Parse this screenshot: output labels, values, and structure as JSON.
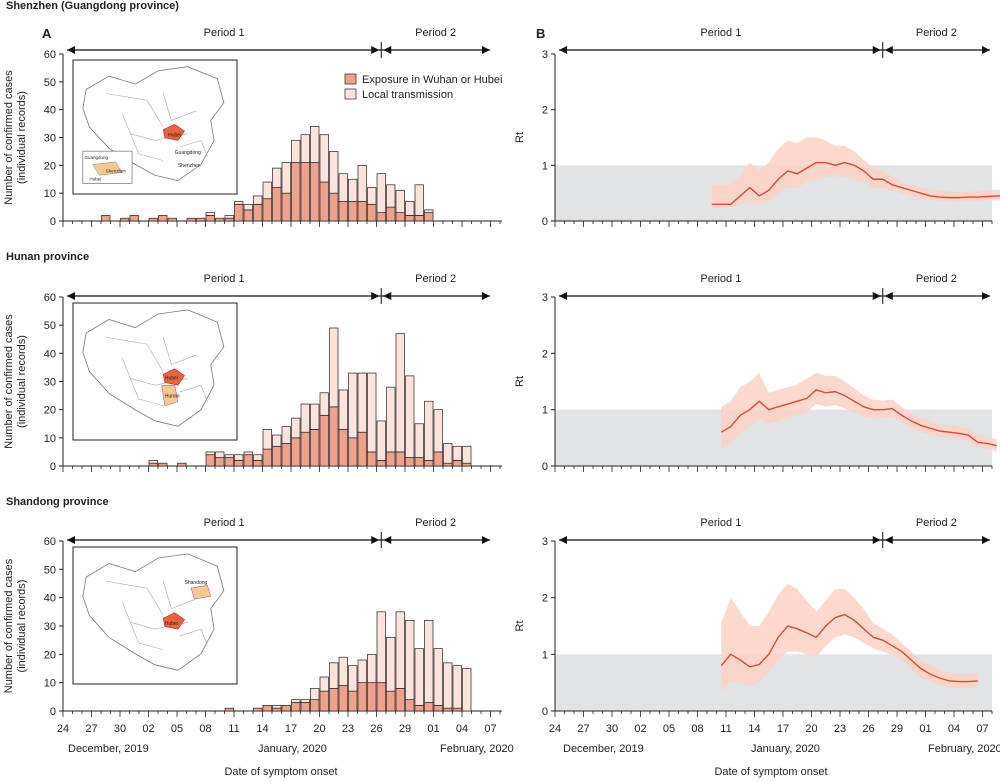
{
  "colors": {
    "exposure": "#f0a18b",
    "local": "#fde3db",
    "bar_stroke": "#222222",
    "rt_line": "#d9493a",
    "rt_band": "#fcd2c3",
    "shade": "#e1e3e4",
    "map_fill": "#ffffff",
    "map_hubei": "#e8643c",
    "map_target": "#f4c98f"
  },
  "panel_labels": {
    "a": "A",
    "b": "B"
  },
  "axis": {
    "ylabel_cases_1": "Number of confirmed cases",
    "ylabel_cases_2": "(individual records)",
    "ylabel_rt": "Rt",
    "xlabel": "Date of symptom onset",
    "date_ticks": [
      "24",
      "27",
      "30",
      "02",
      "05",
      "08",
      "11",
      "14",
      "17",
      "20",
      "23",
      "26",
      "29",
      "01",
      "04",
      "07"
    ],
    "months": [
      "December, 2019",
      "January, 2020",
      "February, 2020"
    ],
    "cases_ticks": [
      "0",
      "10",
      "20",
      "30",
      "40",
      "50",
      "60"
    ],
    "rt_ticks": [
      "0",
      "1",
      "2",
      "3"
    ]
  },
  "period_labels": [
    "Period 1",
    "Period 2"
  ],
  "legend": {
    "exposure": "Exposure in Wuhan or Hubei",
    "local": "Local transmission"
  },
  "map_labels": {
    "guangdong_inset": "Guangdong",
    "shenzhen_inset": "Shenzhen",
    "hubei_inset": "Hubei",
    "hubei": "Hubei",
    "guangdong": "Guangdong",
    "shenzhen": "Shenzhen",
    "hunan": "Hunan",
    "shandong": "Shandong"
  },
  "chart_data": [
    {
      "type": "bar",
      "stacked": true,
      "title": "Shenzhen (Guangdong province)",
      "panel": "A",
      "xlabel": "",
      "ylabel": "Number of confirmed cases (individual records)",
      "ylim": [
        0,
        60
      ],
      "x_start_date": "2019-12-24",
      "series": [
        {
          "name": "Exposure in Wuhan or Hubei",
          "values": [
            0,
            0,
            0,
            0,
            2,
            0,
            1,
            2,
            0,
            1,
            2,
            1,
            0,
            1,
            1,
            2,
            1,
            1,
            6,
            4,
            6,
            8,
            12,
            10,
            21,
            21,
            21,
            14,
            10,
            7,
            7,
            7,
            6,
            3,
            5,
            3,
            2,
            2,
            3
          ]
        },
        {
          "name": "Local transmission",
          "values": [
            0,
            0,
            0,
            0,
            0,
            0,
            0,
            0,
            0,
            0,
            0,
            0,
            0,
            0,
            0,
            1,
            0,
            1,
            1,
            2,
            3,
            6,
            7,
            11,
            8,
            10,
            13,
            17,
            15,
            10,
            8,
            13,
            6,
            14,
            8,
            8,
            5,
            11,
            1
          ]
        }
      ]
    },
    {
      "type": "line",
      "title": "Shenzhen (Guangdong province)",
      "panel": "B",
      "ylabel": "Rt",
      "ylim": [
        0,
        3
      ],
      "threshold": 1,
      "x_start_date": "2020-01-09",
      "series": [
        {
          "name": "Rt",
          "values": [
            0.3,
            0.3,
            0.3,
            0.45,
            0.6,
            0.45,
            0.55,
            0.75,
            0.9,
            0.85,
            0.95,
            1.05,
            1.05,
            1.0,
            1.05,
            1.0,
            0.9,
            0.75,
            0.75,
            0.65,
            0.6,
            0.55,
            0.5,
            0.45,
            0.43,
            0.42,
            0.42,
            0.43,
            0.43,
            0.44,
            0.45,
            0.45,
            0.46
          ]
        },
        {
          "name": "Rt lower",
          "values": [
            0.25,
            0.25,
            0.25,
            0.3,
            0.35,
            0.3,
            0.35,
            0.5,
            0.6,
            0.6,
            0.7,
            0.75,
            0.8,
            0.8,
            0.8,
            0.75,
            0.7,
            0.6,
            0.6,
            0.55,
            0.5,
            0.45,
            0.4,
            0.38,
            0.36,
            0.35,
            0.35,
            0.36,
            0.36,
            0.37,
            0.37,
            0.38,
            0.38
          ]
        },
        {
          "name": "Rt upper",
          "values": [
            0.65,
            0.65,
            0.65,
            0.8,
            1.05,
            0.9,
            1.05,
            1.3,
            1.45,
            1.4,
            1.5,
            1.5,
            1.45,
            1.35,
            1.35,
            1.25,
            1.1,
            0.95,
            0.9,
            0.8,
            0.7,
            0.65,
            0.6,
            0.57,
            0.55,
            0.53,
            0.52,
            0.53,
            0.53,
            0.55,
            0.56,
            0.56,
            0.57
          ]
        }
      ]
    },
    {
      "type": "bar",
      "stacked": true,
      "title": "Hunan province",
      "panel": "A",
      "ylabel": "Number of confirmed cases (individual records)",
      "ylim": [
        0,
        60
      ],
      "x_start_date": "2019-12-24",
      "series": [
        {
          "name": "Exposure in Wuhan or Hubei",
          "values": [
            0,
            0,
            0,
            0,
            0,
            0,
            0,
            0,
            0,
            1,
            1,
            0,
            1,
            0,
            0,
            4,
            3,
            3,
            2,
            4,
            2,
            6,
            7,
            8,
            10,
            12,
            13,
            18,
            21,
            13,
            10,
            12,
            5,
            2,
            5,
            5,
            3,
            3,
            2,
            5,
            1,
            2,
            1
          ]
        },
        {
          "name": "Local transmission",
          "values": [
            0,
            0,
            0,
            0,
            0,
            0,
            0,
            0,
            0,
            1,
            0,
            0,
            0,
            0,
            0,
            1,
            2,
            1,
            2,
            1,
            2,
            7,
            4,
            6,
            7,
            10,
            9,
            8,
            28,
            14,
            23,
            21,
            28,
            14,
            23,
            42,
            29,
            12,
            21,
            15,
            7,
            5,
            6
          ]
        }
      ]
    },
    {
      "type": "line",
      "title": "Hunan province",
      "panel": "B",
      "ylabel": "Rt",
      "ylim": [
        0,
        3
      ],
      "threshold": 1,
      "x_start_date": "2020-01-10",
      "series": [
        {
          "name": "Rt",
          "values": [
            0.6,
            0.7,
            0.9,
            1.0,
            1.15,
            1.0,
            1.05,
            1.1,
            1.15,
            1.2,
            1.35,
            1.3,
            1.32,
            1.25,
            1.15,
            1.05,
            1.0,
            1.0,
            1.02,
            0.9,
            0.8,
            0.72,
            0.67,
            0.62,
            0.6,
            0.58,
            0.55,
            0.42,
            0.4,
            0.36
          ]
        },
        {
          "name": "Rt lower",
          "values": [
            0.3,
            0.4,
            0.6,
            0.7,
            0.85,
            0.75,
            0.8,
            0.85,
            0.9,
            0.95,
            1.1,
            1.05,
            1.08,
            1.02,
            0.95,
            0.88,
            0.85,
            0.85,
            0.88,
            0.78,
            0.68,
            0.6,
            0.56,
            0.52,
            0.5,
            0.48,
            0.45,
            0.33,
            0.3,
            0.26
          ]
        },
        {
          "name": "Rt upper",
          "values": [
            1.05,
            1.15,
            1.4,
            1.5,
            1.65,
            1.3,
            1.35,
            1.4,
            1.45,
            1.55,
            1.65,
            1.6,
            1.6,
            1.5,
            1.38,
            1.25,
            1.18,
            1.16,
            1.18,
            1.05,
            0.93,
            0.85,
            0.8,
            0.75,
            0.72,
            0.7,
            0.67,
            0.55,
            0.52,
            0.47
          ]
        }
      ]
    },
    {
      "type": "bar",
      "stacked": true,
      "title": "Shandong province",
      "panel": "A",
      "ylabel": "Number of confirmed cases (individual records)",
      "ylim": [
        0,
        60
      ],
      "x_start_date": "2019-12-24",
      "series": [
        {
          "name": "Exposure in Wuhan or Hubei",
          "values": [
            0,
            0,
            0,
            0,
            0,
            0,
            0,
            0,
            0,
            0,
            0,
            0,
            0,
            0,
            0,
            0,
            0,
            1,
            0,
            0,
            1,
            2,
            1,
            2,
            3,
            3,
            4,
            7,
            8,
            9,
            7,
            10,
            10,
            10,
            7,
            8,
            4,
            2,
            3,
            2,
            1,
            1,
            0
          ]
        },
        {
          "name": "Local transmission",
          "values": [
            0,
            0,
            0,
            0,
            0,
            0,
            0,
            0,
            0,
            0,
            0,
            0,
            0,
            0,
            0,
            0,
            0,
            0,
            0,
            0,
            0,
            0,
            1,
            0,
            1,
            1,
            4,
            5,
            9,
            10,
            9,
            8,
            10,
            25,
            19,
            27,
            28,
            20,
            29,
            20,
            16,
            15,
            15
          ]
        }
      ]
    },
    {
      "type": "line",
      "title": "Shandong province",
      "panel": "B",
      "ylabel": "Rt",
      "ylim": [
        0,
        3
      ],
      "threshold": 1,
      "x_start_date": "2020-01-10",
      "series": [
        {
          "name": "Rt",
          "values": [
            0.8,
            1.0,
            0.9,
            0.78,
            0.82,
            1.0,
            1.3,
            1.5,
            1.45,
            1.38,
            1.3,
            1.5,
            1.65,
            1.7,
            1.6,
            1.45,
            1.3,
            1.25,
            1.15,
            1.05,
            0.9,
            0.75,
            0.65,
            0.58,
            0.53,
            0.52,
            0.52,
            0.53
          ]
        },
        {
          "name": "Rt lower",
          "values": [
            0.35,
            0.5,
            0.5,
            0.45,
            0.5,
            0.7,
            0.9,
            1.05,
            1.05,
            1.0,
            0.95,
            1.15,
            1.3,
            1.35,
            1.3,
            1.2,
            1.1,
            1.05,
            0.98,
            0.9,
            0.75,
            0.6,
            0.52,
            0.46,
            0.41,
            0.4,
            0.4,
            0.41
          ]
        },
        {
          "name": "Rt upper",
          "values": [
            1.55,
            2.0,
            1.75,
            1.5,
            1.5,
            1.75,
            2.05,
            2.25,
            2.15,
            1.95,
            1.75,
            1.95,
            2.15,
            2.15,
            2.0,
            1.8,
            1.55,
            1.45,
            1.35,
            1.2,
            1.05,
            0.9,
            0.8,
            0.72,
            0.67,
            0.65,
            0.65,
            0.66
          ]
        }
      ]
    }
  ]
}
